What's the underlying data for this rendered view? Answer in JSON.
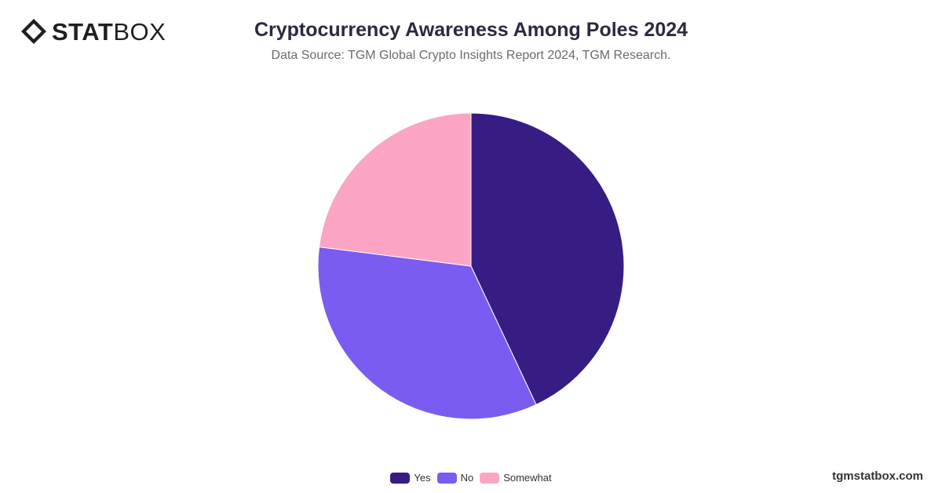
{
  "logo": {
    "bold_text": "STAT",
    "light_text": "BOX"
  },
  "watermark": "tgmstatbox.com",
  "chart_data": {
    "type": "pie",
    "title": "Cryptocurrency Awareness Among Poles 2024",
    "subtitle": "Data Source: TGM Global Crypto Insights Report 2024, TGM Research.",
    "categories": [
      "Yes",
      "No",
      "Somewhat"
    ],
    "values": [
      43,
      34,
      23
    ],
    "colors": [
      "#371c84",
      "#7b5cf0",
      "#fca4c4"
    ],
    "legend_position": "bottom"
  }
}
